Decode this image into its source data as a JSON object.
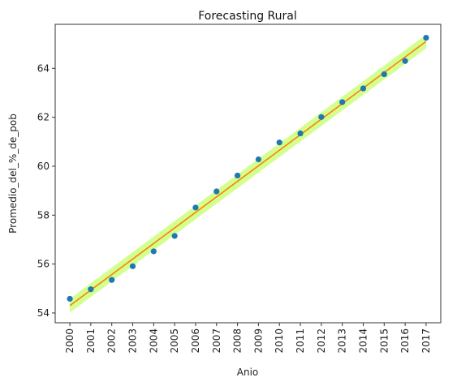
{
  "chart_data": {
    "type": "scatter",
    "title": "Forecasting Rural",
    "xlabel": "Anio",
    "ylabel": "Promedio_del_%_de_pob",
    "x": [
      2000,
      2001,
      2002,
      2003,
      2004,
      2005,
      2006,
      2007,
      2008,
      2009,
      2010,
      2011,
      2012,
      2013,
      2014,
      2015,
      2016,
      2017
    ],
    "x_tick_labels": [
      "2000",
      "2001",
      "2002",
      "2003",
      "2004",
      "2005",
      "2006",
      "2007",
      "2008",
      "2009",
      "2010",
      "2011",
      "2012",
      "2013",
      "2014",
      "2015",
      "2016",
      "2017"
    ],
    "y": [
      54.58,
      54.97,
      55.35,
      55.91,
      56.52,
      57.15,
      58.31,
      58.97,
      59.62,
      60.28,
      60.97,
      61.34,
      62.01,
      62.62,
      63.18,
      63.76,
      64.3,
      65.25
    ],
    "trend": {
      "start": [
        2000,
        54.3
      ],
      "end": [
        2017,
        65.1
      ]
    },
    "band_halfwidth": 0.28,
    "ylim": [
      53.6,
      65.8
    ],
    "xlim": [
      1999.3,
      2017.7
    ],
    "y_ticks": [
      54,
      56,
      58,
      60,
      62,
      64
    ],
    "y_tick_labels": [
      "54",
      "56",
      "58",
      "60",
      "62",
      "64"
    ],
    "grid": false,
    "colors": {
      "points": "#1f77b4",
      "trend": "#ff7f0e",
      "band": "#adff2f"
    }
  }
}
